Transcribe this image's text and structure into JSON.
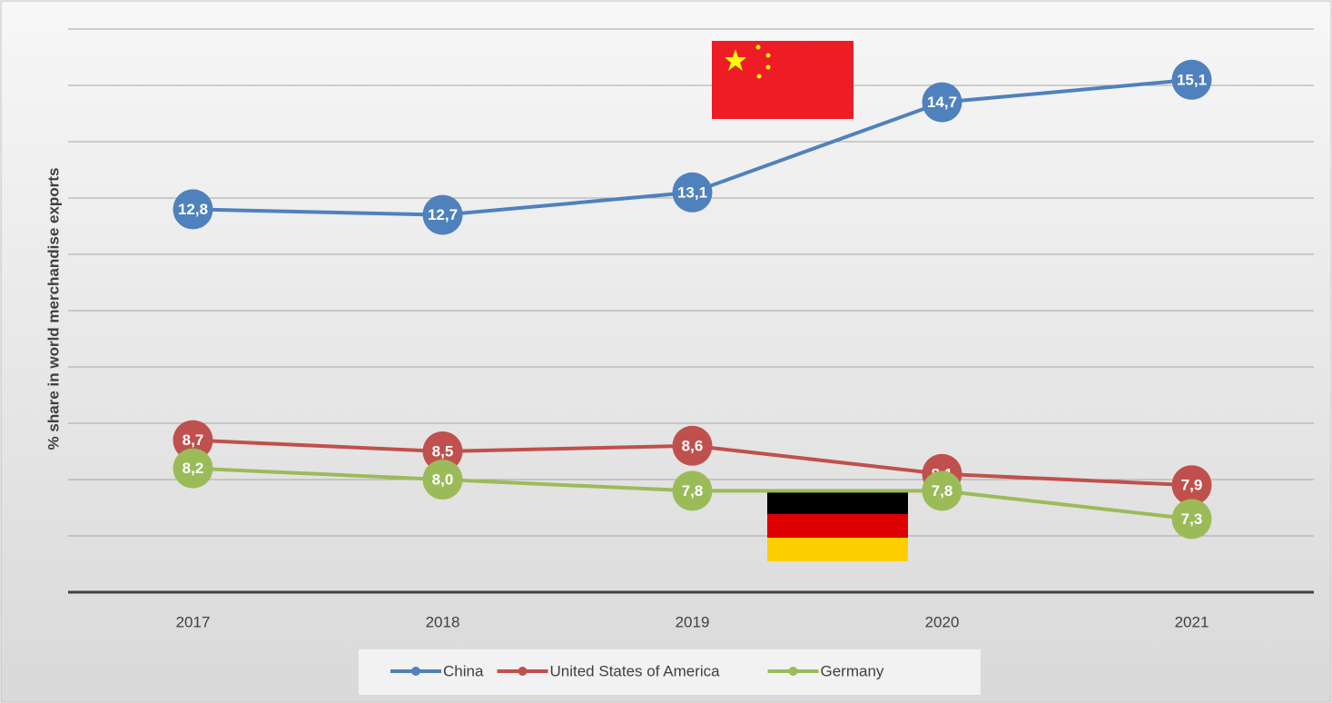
{
  "chart_data": {
    "type": "line",
    "y_label": "% share in world merchandise exports",
    "categories": [
      "2017",
      "2018",
      "2019",
      "2020",
      "2021"
    ],
    "series": [
      {
        "name": "China",
        "color": "#4f81bd",
        "values": [
          12.8,
          12.7,
          13.1,
          14.7,
          15.1
        ],
        "value_labels": [
          "12,8",
          "12,7",
          "13,1",
          "14,7",
          "15,1"
        ]
      },
      {
        "name": "United States of America",
        "color": "#c0504d",
        "values": [
          8.7,
          8.5,
          8.6,
          8.1,
          7.9
        ],
        "value_labels": [
          "8,7",
          "8,5",
          "8,6",
          "8,1",
          "7,9"
        ]
      },
      {
        "name": "Germany",
        "color": "#9bbb59",
        "values": [
          8.2,
          8.0,
          7.8,
          7.8,
          7.3
        ],
        "value_labels": [
          "8,2",
          "8,0",
          "7,8",
          "7,8",
          "7,3"
        ]
      }
    ],
    "ylim": [
      6,
      16
    ],
    "yticks": [
      6,
      7,
      8,
      9,
      10,
      11,
      12,
      13,
      14,
      15,
      16
    ],
    "grid": true,
    "legend": "bottom"
  }
}
